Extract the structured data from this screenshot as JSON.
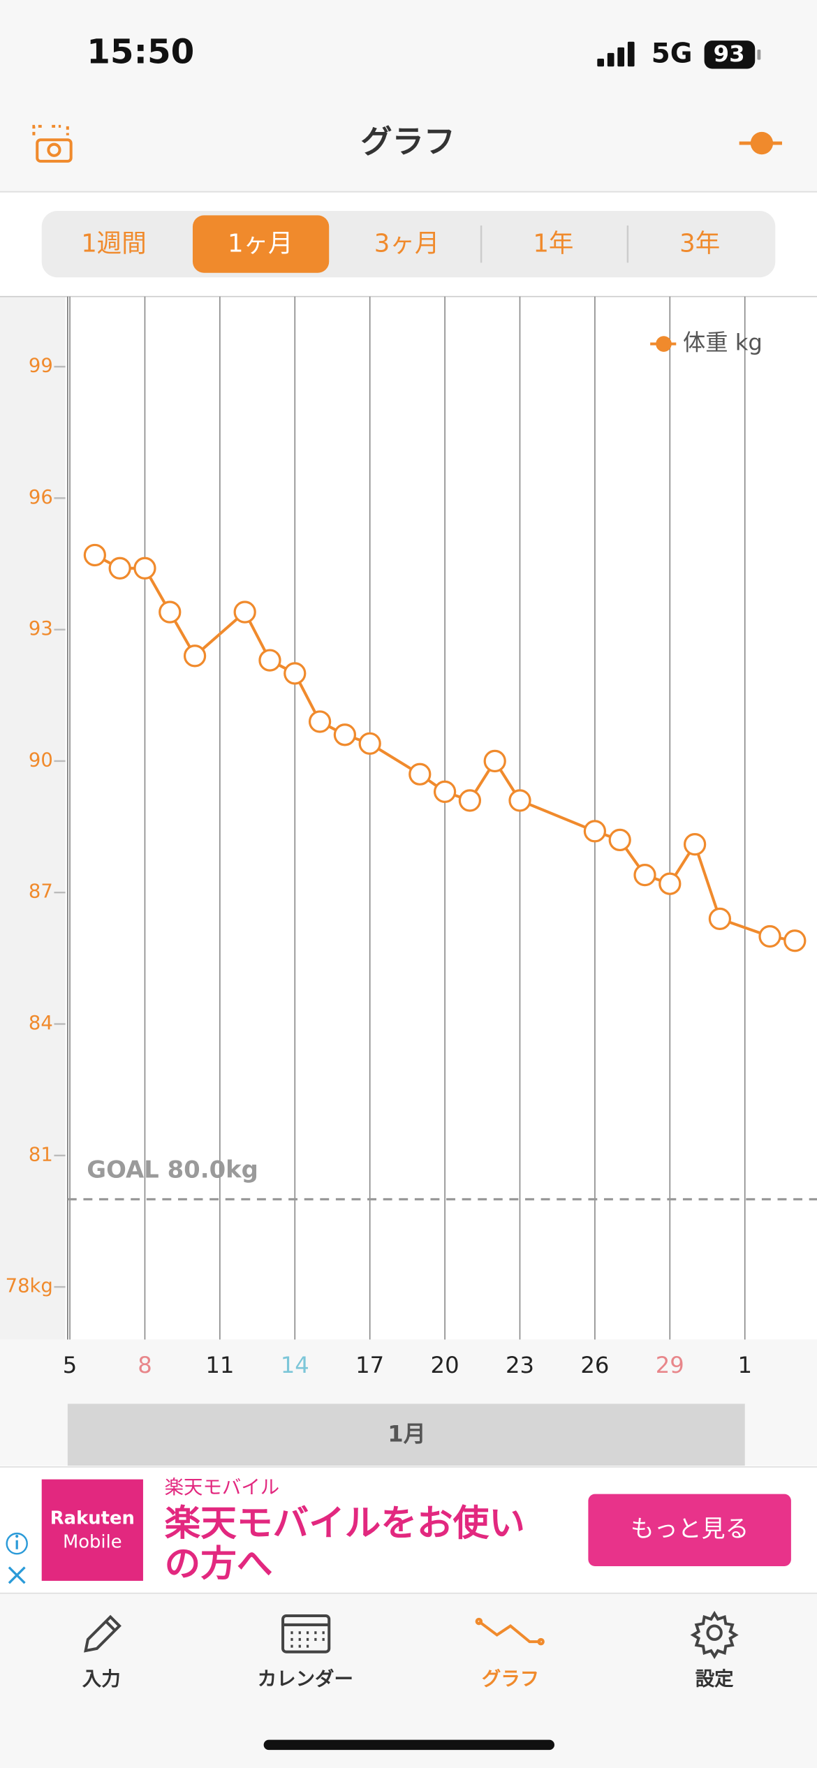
{
  "status_bar": {
    "time": "15:50",
    "network": "5G",
    "battery": "93"
  },
  "header": {
    "title": "グラフ"
  },
  "period_tabs": {
    "items": [
      "1週間",
      "1ヶ月",
      "3ヶ月",
      "1年",
      "3年"
    ],
    "selected": 1
  },
  "chart_data": {
    "type": "line",
    "x": [
      6,
      7,
      8,
      9,
      10,
      12,
      13,
      14,
      15,
      16,
      17,
      19,
      20,
      21,
      22,
      23,
      26,
      27,
      28,
      29,
      30,
      31,
      33,
      34
    ],
    "series": [
      {
        "name": "体重 kg",
        "color": "#f08a2c",
        "values": [
          94.7,
          94.4,
          94.4,
          93.4,
          92.4,
          93.4,
          92.3,
          92.0,
          90.9,
          90.6,
          90.4,
          89.7,
          89.3,
          89.1,
          90.0,
          89.1,
          88.4,
          88.2,
          87.4,
          87.2,
          88.1,
          86.4,
          86.0,
          85.9
        ]
      }
    ],
    "xlim": [
      4.9,
      34.9
    ],
    "ylim": [
      76.8,
      100.6
    ],
    "xticks": [
      5,
      8,
      11,
      14,
      17,
      20,
      23,
      26,
      29,
      {
        "value": 32,
        "label": "1"
      }
    ],
    "xtick_colors": [
      "#222222",
      "#e8868a",
      "#222222",
      "#7cc6d8",
      "#222222",
      "#222222",
      "#222222",
      "#222222",
      "#e8868a",
      "#222222"
    ],
    "yticks": [
      99,
      96,
      93,
      90,
      87,
      84,
      81,
      {
        "value": 78,
        "label": "78kg"
      }
    ],
    "grid": true,
    "legend": "upper right",
    "goal": {
      "label": "GOAL 80.0kg",
      "value": 80
    },
    "month_label": "1月"
  },
  "ad": {
    "logo": [
      "Rakuten",
      "Mobile"
    ],
    "brand": "楽天モバイル",
    "headline": [
      "楽天モバイルをお使い",
      "の方へ"
    ],
    "button": "もっと見る"
  },
  "tab_bar": {
    "items": [
      "入力",
      "カレンダー",
      "グラフ",
      "設定"
    ],
    "selected": 2
  }
}
